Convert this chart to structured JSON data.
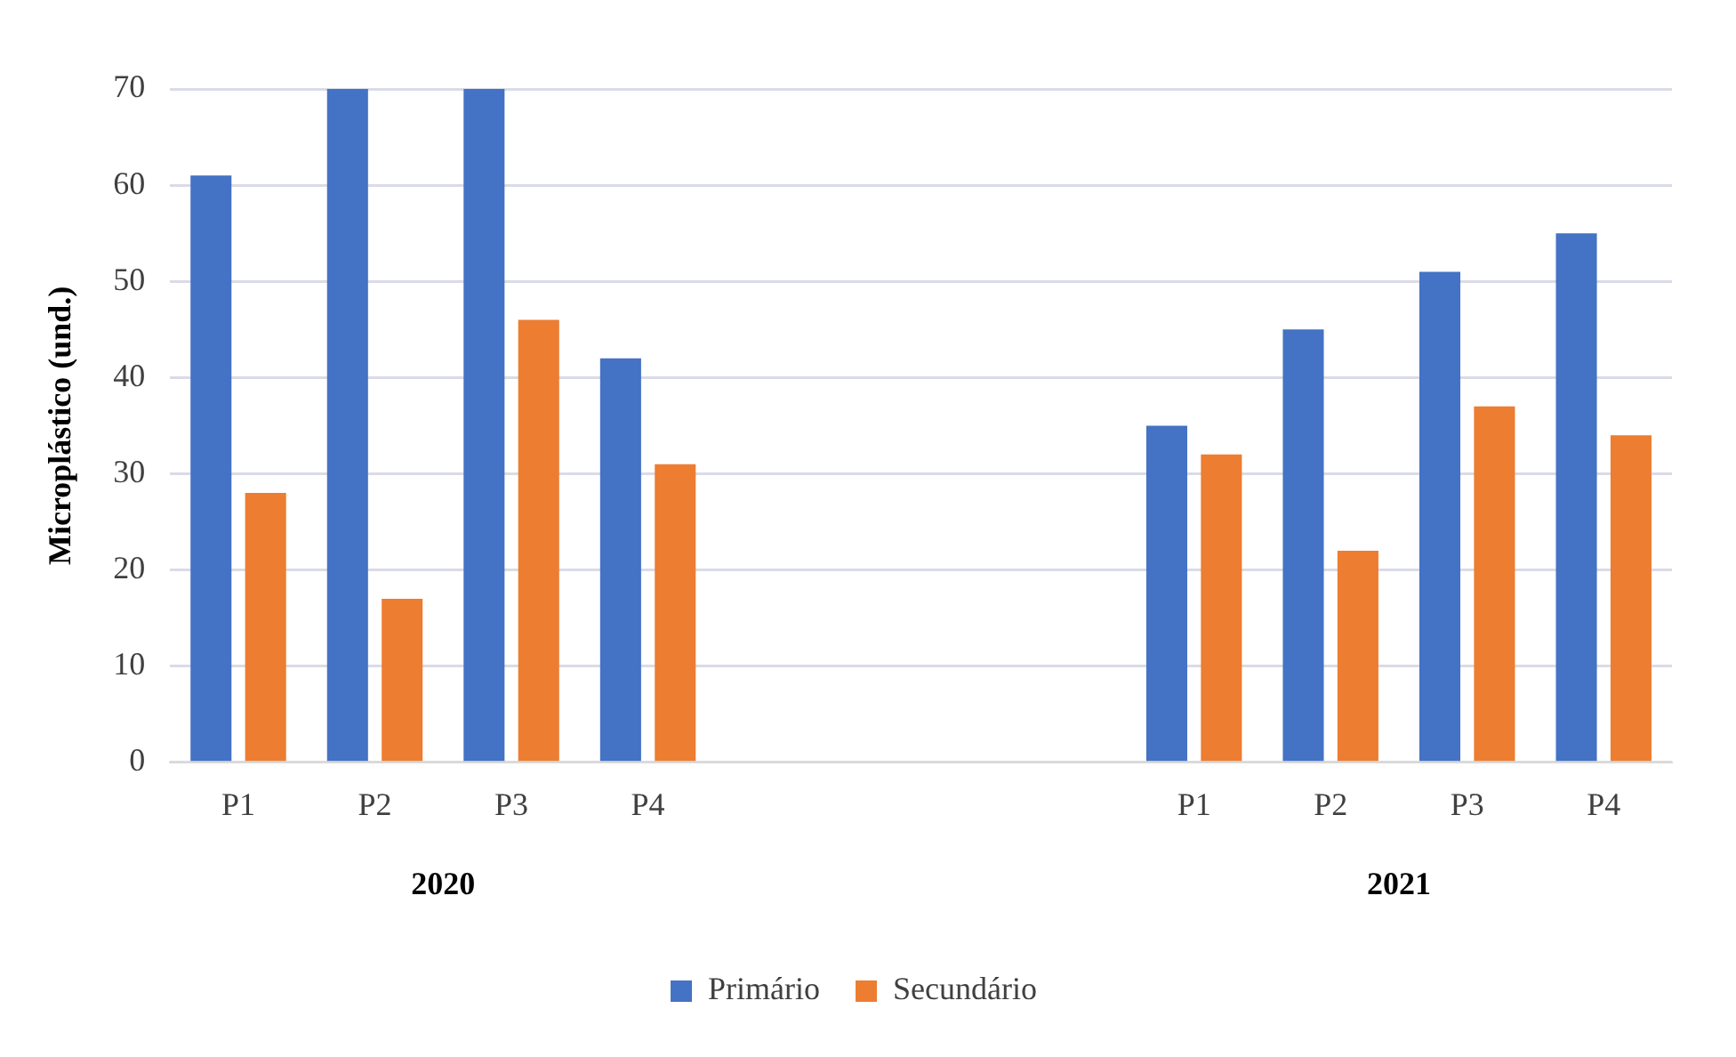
{
  "chart_data": {
    "type": "bar",
    "ylabel": "Microplástico (und.)",
    "categories": [
      "P1",
      "P2",
      "P3",
      "P4",
      null,
      null,
      null,
      "P1",
      "P2",
      "P3",
      "P4"
    ],
    "series": [
      {
        "name": "Primário",
        "color": "#4472c4",
        "values": [
          61,
          70,
          70,
          42,
          null,
          null,
          null,
          35,
          45,
          51,
          55
        ]
      },
      {
        "name": "Secundário",
        "color": "#ed7d31",
        "values": [
          28,
          17,
          46,
          31,
          null,
          null,
          null,
          32,
          22,
          37,
          34
        ]
      }
    ],
    "ylim": [
      0,
      70
    ],
    "yticks": [
      0,
      10,
      20,
      30,
      40,
      50,
      60,
      70
    ],
    "grid": "y",
    "legend": "bottom",
    "annotations": [
      "2020",
      "2021"
    ]
  }
}
